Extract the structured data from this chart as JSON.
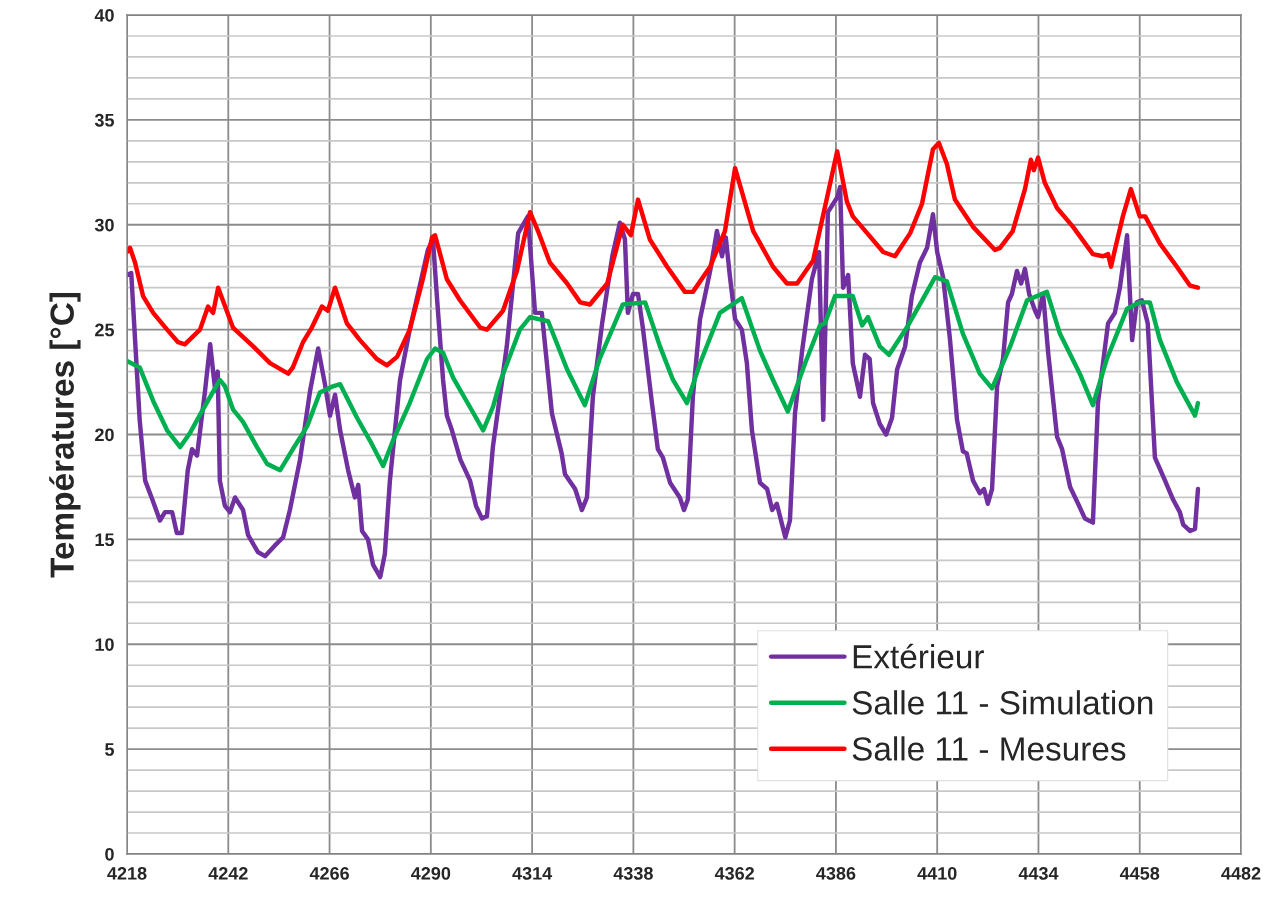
{
  "chart_data": {
    "type": "line",
    "ylabel": "Températures [°C]",
    "xlim": [
      4218,
      4482
    ],
    "xticks": [
      4218,
      4242,
      4266,
      4290,
      4314,
      4338,
      4362,
      4386,
      4410,
      4434,
      4458,
      4482
    ],
    "ylim": [
      0,
      40
    ],
    "yticks": [
      0,
      5,
      10,
      15,
      20,
      25,
      30,
      35,
      40
    ],
    "grid": true,
    "legend": "bottom right",
    "marker": "none",
    "line_style": "solid",
    "series": [
      {
        "name": "Extérieur",
        "color": "#7030a0",
        "x": [
          4218,
          4219,
          4221,
          4222.3,
          4224,
          4225.8,
          4227,
          4228.7,
          4229.8,
          4231,
          4232.4,
          4233.4,
          4234.6,
          4236.5,
          4237.7,
          4238.9,
          4239.5,
          4240,
          4241.2,
          4242.4,
          4243.6,
          4245.5,
          4246.7,
          4249,
          4250.7,
          4253,
          4255,
          4256.6,
          4259,
          4261.4,
          4263.3,
          4264.9,
          4266.1,
          4267.3,
          4268.5,
          4270.4,
          4272,
          4272.8,
          4273.7,
          4275.1,
          4276.3,
          4278,
          4279.1,
          4280.3,
          4282.7,
          4285,
          4287.4,
          4289.3,
          4290.5,
          4291.5,
          4292.9,
          4293.8,
          4295,
          4297,
          4299.3,
          4300.7,
          4302.1,
          4303.3,
          4304.7,
          4308,
          4310.7,
          4313,
          4314.7,
          4316.3,
          4317,
          4318.7,
          4321,
          4321.8,
          4324.2,
          4325.8,
          4327,
          4328.4,
          4330.6,
          4333,
          4334.8,
          4336,
          4336.7,
          4337.9,
          4339.1,
          4340.3,
          4342.4,
          4343.8,
          4345,
          4346.7,
          4349,
          4350,
          4350.9,
          4352.1,
          4353.8,
          4356.2,
          4357.8,
          4359,
          4359.9,
          4360.9,
          4362.1,
          4363.7,
          4364.9,
          4366.1,
          4368,
          4369.7,
          4370.9,
          4372,
          4374,
          4375.1,
          4376.3,
          4378,
          4380.3,
          4382,
          4383,
          4384.1,
          4386.3,
          4387,
          4387.7,
          4388.9,
          4390,
          4391.7,
          4392.9,
          4394,
          4394.8,
          4396.4,
          4397.9,
          4399.3,
          4400.5,
          4402.4,
          4404,
          4405.9,
          4407.6,
          4409,
          4410,
          4411.4,
          4413,
          4414.7,
          4416.1,
          4417,
          4418.5,
          4420.1,
          4421.1,
          4422,
          4423,
          4424.2,
          4425.6,
          4426.8,
          4427.7,
          4428.9,
          4429.9,
          4430.8,
          4431.8,
          4433.2,
          4433.9,
          4435.1,
          4436.3,
          4438.4,
          4439.6,
          4441.5,
          4443.4,
          4445,
          4446.9,
          4448.1,
          4450.5,
          4452.1,
          4453.3,
          4455,
          4456.2,
          4457.3,
          4458.5,
          4459.9,
          4461.6,
          4464,
          4465.9,
          4467.5,
          4468.3,
          4469.9,
          4471.1,
          4471.8
        ],
        "values": [
          27.6,
          27.7,
          20.7,
          17.8,
          16.9,
          15.9,
          16.3,
          16.3,
          15.3,
          15.3,
          18.3,
          19.3,
          19.0,
          22.1,
          24.3,
          22.1,
          23.0,
          17.8,
          16.6,
          16.3,
          17.0,
          16.4,
          15.2,
          14.4,
          14.2,
          14.7,
          15.1,
          16.4,
          18.8,
          22.1,
          24.1,
          22.4,
          20.9,
          21.9,
          20.2,
          18.3,
          17.0,
          17.6,
          15.4,
          15.0,
          13.8,
          13.2,
          14.3,
          17.8,
          22.6,
          25.0,
          27.1,
          28.8,
          29.3,
          26.4,
          22.6,
          20.9,
          20.2,
          18.8,
          17.8,
          16.6,
          16.0,
          16.1,
          19.4,
          24.2,
          29.6,
          30.4,
          25.8,
          25.8,
          24.4,
          21.0,
          19.1,
          18.1,
          17.4,
          16.4,
          17.0,
          21.8,
          25.3,
          28.5,
          30.1,
          29.3,
          25.8,
          26.7,
          26.7,
          25.0,
          21.5,
          19.3,
          18.9,
          17.7,
          17.0,
          16.4,
          16.9,
          21.8,
          25.5,
          27.8,
          29.7,
          28.5,
          29.4,
          27.5,
          25.5,
          25.0,
          23.4,
          20.2,
          17.7,
          17.4,
          16.4,
          16.7,
          15.1,
          15.9,
          21.0,
          24.0,
          27.4,
          28.7,
          20.7,
          30.6,
          31.3,
          31.8,
          27.0,
          27.6,
          23.4,
          21.8,
          23.8,
          23.6,
          21.5,
          20.5,
          20.0,
          20.8,
          23.1,
          24.2,
          26.6,
          28.2,
          28.9,
          30.5,
          28.7,
          27.5,
          24.6,
          20.7,
          19.2,
          19.1,
          17.8,
          17.2,
          17.4,
          16.7,
          17.4,
          22.3,
          23.6,
          26.3,
          26.7,
          27.8,
          27.2,
          27.9,
          26.7,
          25.9,
          25.6,
          26.7,
          23.9,
          19.9,
          19.3,
          17.5,
          16.7,
          16.0,
          15.8,
          21.5,
          25.3,
          25.8,
          27.0,
          29.5,
          24.5,
          26.3,
          26.4,
          25.3,
          18.9,
          17.8,
          16.9,
          16.3,
          15.7,
          15.4,
          15.5,
          17.4
        ]
      },
      {
        "name": "Salle 11 - Simulation",
        "color": "#00b050",
        "x": [
          4218,
          4221,
          4224.2,
          4227.5,
          4230.6,
          4233,
          4236,
          4240,
          4241.2,
          4243.1,
          4245.5,
          4248.8,
          4251.2,
          4254.3,
          4257.3,
          4260.7,
          4263.7,
          4266.8,
          4268.5,
          4272.5,
          4275.6,
          4278.7,
          4281,
          4285,
          4289.1,
          4291,
          4292.9,
          4295.3,
          4299.3,
          4302.4,
          4304.7,
          4306.4,
          4311.1,
          4313.5,
          4317.8,
          4322.3,
          4326.5,
          4330,
          4335.5,
          4340.8,
          4344.3,
          4347.4,
          4350.7,
          4353.8,
          4358.5,
          4363.7,
          4368,
          4371.1,
          4374.6,
          4378.7,
          4382.2,
          4383.4,
          4385.8,
          4388.6,
          4390,
          4392.2,
          4393.6,
          4396.4,
          4398.6,
          4402.8,
          4405.9,
          4409.5,
          4412.3,
          4416.1,
          4420.1,
          4423,
          4427.3,
          4431.3,
          4436,
          4439.1,
          4443.8,
          4446.9,
          4450.2,
          4455,
          4458,
          4460.4,
          4462.8,
          4466.8,
          4471.1,
          4471.8
        ],
        "values": [
          23.5,
          23.2,
          21.6,
          20.2,
          19.4,
          20.1,
          21.2,
          22.6,
          22.3,
          21.2,
          20.6,
          19.4,
          18.6,
          18.3,
          19.3,
          20.4,
          22.0,
          22.3,
          22.4,
          20.8,
          19.7,
          18.5,
          19.7,
          21.5,
          23.6,
          24.1,
          23.9,
          22.7,
          21.3,
          20.2,
          21.3,
          22.5,
          25.0,
          25.6,
          25.4,
          23.1,
          21.4,
          23.6,
          26.2,
          26.3,
          24.2,
          22.6,
          21.5,
          23.4,
          25.8,
          26.5,
          24.0,
          22.6,
          21.1,
          23.4,
          25.2,
          25.3,
          26.6,
          26.6,
          26.6,
          25.2,
          25.6,
          24.2,
          23.8,
          25.1,
          26.2,
          27.5,
          27.3,
          24.8,
          22.9,
          22.2,
          24.2,
          26.4,
          26.8,
          24.8,
          22.9,
          21.4,
          23.6,
          26.0,
          26.3,
          26.3,
          24.5,
          22.5,
          20.9,
          21.5
        ]
      },
      {
        "name": "Salle 11 - Mesures",
        "color": "#ff0000",
        "x": [
          4218,
          4218.7,
          4219.9,
          4221.8,
          4224.2,
          4227.5,
          4230.1,
          4231.7,
          4235.3,
          4237.2,
          4238.4,
          4239.6,
          4243.1,
          4247.9,
          4251.9,
          4256.2,
          4257.3,
          4259.7,
          4261.8,
          4264.2,
          4265.6,
          4267.3,
          4270.1,
          4273.2,
          4277.2,
          4279.6,
          4282,
          4285,
          4288.1,
          4290.3,
          4291,
          4293.8,
          4296.9,
          4301.7,
          4303.3,
          4307.1,
          4310.4,
          4313.5,
          4315.4,
          4318.2,
          4322.3,
          4325.4,
          4327.7,
          4331.8,
          4335.5,
          4337.4,
          4339.1,
          4341.9,
          4346,
          4350.2,
          4352.1,
          4356.2,
          4359.7,
          4362.1,
          4366.4,
          4371.1,
          4374.4,
          4376.8,
          4380.6,
          4383.9,
          4386.3,
          4388.6,
          4390,
          4393.4,
          4397.2,
          4400,
          4403.6,
          4406.4,
          4409,
          4410.4,
          4412.3,
          4414.2,
          4418.5,
          4423.7,
          4424.9,
          4427.9,
          4430.8,
          4432.2,
          4432.9,
          4433.9,
          4435.5,
          4438.4,
          4442.2,
          4446.9,
          4449.3,
          4450.5,
          4451.2,
          4452.1,
          4454,
          4455.9,
          4458,
          4459.3,
          4462.8,
          4466.8,
          4469.9,
          4471.8
        ],
        "values": [
          28.7,
          28.9,
          28.2,
          26.6,
          25.8,
          25.0,
          24.4,
          24.3,
          25.0,
          26.1,
          25.8,
          27.0,
          25.1,
          24.2,
          23.4,
          22.9,
          23.2,
          24.4,
          25.1,
          26.1,
          25.9,
          27.0,
          25.3,
          24.5,
          23.6,
          23.3,
          23.7,
          25.0,
          27.4,
          29.4,
          29.5,
          27.4,
          26.4,
          25.1,
          25.0,
          25.9,
          27.8,
          30.6,
          29.7,
          28.2,
          27.2,
          26.3,
          26.2,
          27.2,
          30.0,
          29.5,
          31.2,
          29.3,
          28.0,
          26.8,
          26.8,
          28.0,
          29.7,
          32.7,
          29.7,
          28.0,
          27.2,
          27.2,
          28.3,
          31.3,
          33.5,
          31.1,
          30.4,
          29.6,
          28.7,
          28.5,
          29.6,
          31.0,
          33.6,
          33.9,
          32.9,
          31.2,
          29.9,
          28.8,
          28.9,
          29.7,
          31.7,
          33.1,
          32.6,
          33.2,
          32.0,
          30.8,
          29.9,
          28.6,
          28.5,
          28.6,
          28.0,
          28.8,
          30.4,
          31.7,
          30.4,
          30.4,
          29.1,
          28.0,
          27.1,
          27.0
        ]
      }
    ]
  }
}
